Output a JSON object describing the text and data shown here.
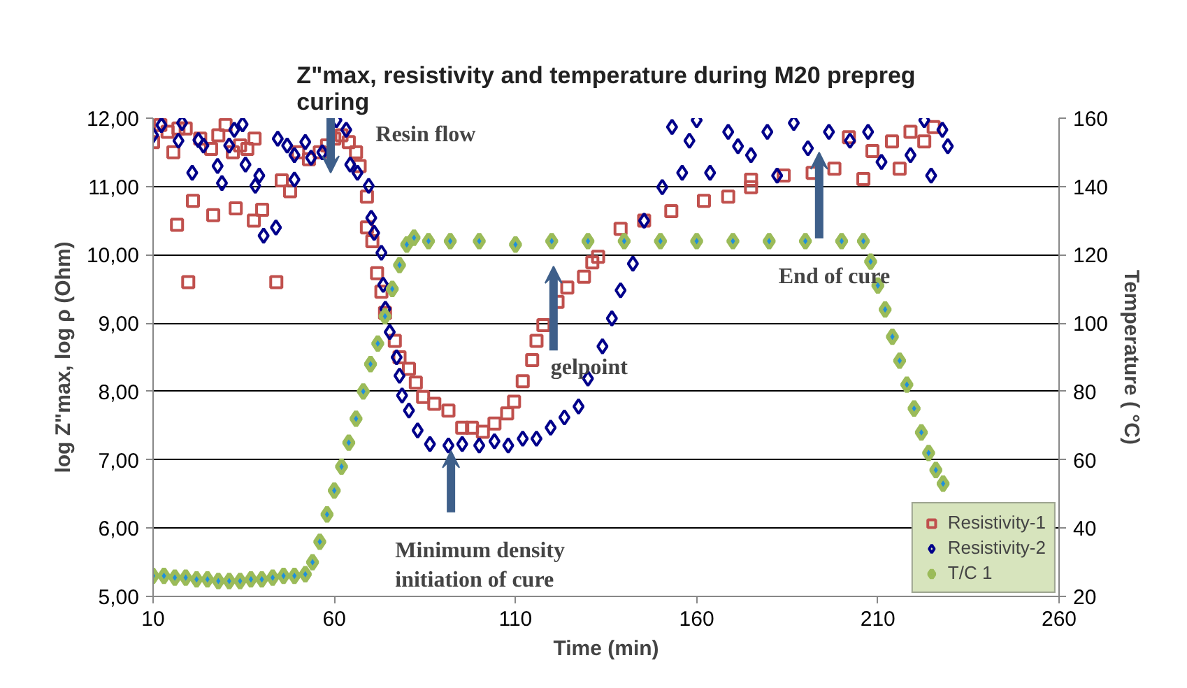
{
  "chart_data": {
    "type": "scatter",
    "title": "Z\"max, resistivity and temperature during M20 prepreg curing",
    "xlabel": "Time (min)",
    "ylabel": "log Z\"max, log ρ (Ohm)",
    "y2label": "Temperature ( °C)",
    "xlim": [
      10,
      260
    ],
    "xticks": [
      10,
      60,
      110,
      160,
      210,
      260
    ],
    "ylim": [
      5,
      12
    ],
    "yticks": [
      {
        "value": 5,
        "label": "5,00"
      },
      {
        "value": 6,
        "label": "6,00"
      },
      {
        "value": 7,
        "label": "7,00"
      },
      {
        "value": 8,
        "label": "8,00"
      },
      {
        "value": 9,
        "label": "9,00"
      },
      {
        "value": 10,
        "label": "10,00"
      },
      {
        "value": 11,
        "label": "11,00"
      },
      {
        "value": 12,
        "label": "12,00"
      }
    ],
    "y2lim": [
      20,
      160
    ],
    "y2ticks": [
      20,
      40,
      60,
      80,
      100,
      120,
      140,
      160
    ],
    "grid": "y",
    "legend": "bottom right",
    "series": [
      {
        "name": "Resistivity-1",
        "color": "#c0504d",
        "marker": "square",
        "x": [
          10,
          12,
          14,
          15.6,
          16.6,
          17,
          19,
          19.7,
          21,
          23,
          26,
          26.6,
          28,
          30,
          32,
          32.8,
          34,
          36,
          37.8,
          38,
          40.1,
          44,
          45.5,
          47.8,
          50,
          53,
          56,
          58,
          60,
          62,
          64,
          66,
          67,
          69,
          69,
          70.5,
          71.8,
          73,
          74,
          76.7,
          78,
          80.6,
          82.5,
          84.5,
          87.6,
          91.5,
          95.3,
          98,
          101,
          104.2,
          107.7,
          109.6,
          112,
          114.6,
          115.8,
          117.7,
          121.6,
          124.3,
          128.9,
          131.2,
          132.8,
          139,
          145.5,
          153,
          162,
          168.7,
          175,
          175,
          184,
          192,
          198,
          202,
          206,
          208.5,
          213.9,
          216,
          219,
          222.8,
          225.4
        ],
        "values": [
          11.65,
          11.9,
          11.8,
          11.5,
          10.44,
          11.85,
          11.85,
          9.6,
          10.79,
          11.7,
          11.55,
          10.58,
          11.75,
          11.9,
          11.5,
          10.68,
          11.6,
          11.55,
          10.5,
          11.7,
          10.66,
          9.6,
          11.09,
          10.93,
          11.5,
          11.4,
          11.5,
          11.6,
          11.7,
          11.75,
          11.65,
          11.5,
          11.3,
          10.85,
          10.4,
          10.2,
          9.73,
          9.46,
          9.15,
          8.74,
          8.5,
          8.33,
          8.13,
          7.92,
          7.82,
          7.72,
          7.47,
          7.47,
          7.41,
          7.53,
          7.68,
          7.85,
          8.15,
          8.46,
          8.74,
          8.97,
          9.31,
          9.52,
          9.68,
          9.89,
          9.97,
          10.38,
          10.5,
          10.64,
          10.79,
          10.85,
          10.99,
          11.1,
          11.16,
          11.2,
          11.26,
          11.72,
          11.11,
          11.52,
          11.66,
          11.26,
          11.8,
          11.66,
          11.87
        ]
      },
      {
        "name": "Resistivity-2",
        "color": "#00008b",
        "marker": "diamond",
        "x": [
          10,
          12.3,
          17,
          18,
          20.8,
          22.5,
          23.9,
          27.8,
          29,
          31,
          32.4,
          34.7,
          35.5,
          38.2,
          39.3,
          40.5,
          43.9,
          44.4,
          47,
          49,
          49,
          52,
          53.6,
          56.7,
          60.6,
          63.3,
          64.4,
          66.4,
          69.5,
          70.2,
          71,
          73,
          73.5,
          74.1,
          75.3,
          77.2,
          78,
          78.7,
          80.6,
          83,
          86.4,
          91.5,
          95.3,
          100,
          104.2,
          108,
          112,
          115.8,
          119.7,
          123.5,
          127.4,
          130,
          134,
          136.6,
          139,
          142.4,
          145.5,
          150.5,
          153.2,
          156,
          158,
          160,
          163.7,
          168.7,
          171.4,
          175,
          179.5,
          182.2,
          186.8,
          190.7,
          196.5,
          202.3,
          207.3,
          211,
          219,
          222.8,
          224.7,
          227.8,
          229.3
        ],
        "values": [
          11.75,
          11.9,
          11.67,
          11.93,
          11.2,
          11.68,
          11.6,
          11.3,
          11.05,
          11.6,
          11.83,
          11.91,
          11.32,
          11.01,
          11.16,
          10.28,
          10.4,
          11.7,
          11.6,
          11.46,
          11.1,
          11.65,
          11.42,
          11.5,
          11.97,
          11.83,
          11.32,
          11.2,
          11.01,
          10.54,
          10.32,
          10.03,
          9.56,
          9.21,
          8.87,
          8.5,
          8.23,
          7.94,
          7.72,
          7.43,
          7.23,
          7.21,
          7.23,
          7.21,
          7.27,
          7.21,
          7.31,
          7.31,
          7.47,
          7.62,
          7.78,
          8.19,
          8.66,
          9.07,
          9.48,
          9.87,
          10.5,
          10.99,
          11.87,
          11.2,
          11.67,
          11.97,
          11.2,
          11.8,
          11.59,
          11.46,
          11.8,
          11.16,
          11.93,
          11.56,
          11.8,
          11.67,
          11.8,
          11.36,
          11.46,
          11.97,
          11.16,
          11.83,
          11.59
        ]
      },
      {
        "name": "T/C 1",
        "color": "#9bbb59",
        "marker": "diamond",
        "axis": "y2",
        "x": [
          10,
          13,
          16,
          19,
          22,
          25,
          28,
          31,
          34,
          37,
          40,
          43,
          46,
          49,
          52,
          54,
          56,
          58,
          60,
          62,
          64,
          66,
          68,
          70,
          72,
          74,
          76,
          78,
          80,
          82,
          86,
          92,
          100,
          110,
          120,
          130,
          140,
          150,
          160,
          170,
          180,
          190,
          200,
          206,
          208,
          210,
          212,
          214,
          216,
          218,
          220,
          222,
          224,
          226,
          228
        ],
        "values": [
          26,
          26,
          25.5,
          25.5,
          25,
          25,
          24.5,
          24.5,
          24.5,
          25,
          25,
          25.5,
          26,
          26,
          26.5,
          30,
          36,
          44,
          51,
          58,
          65,
          72,
          80,
          88,
          94,
          102,
          110,
          117,
          123,
          125,
          124,
          124,
          124,
          123,
          124,
          124,
          124,
          124,
          124,
          124,
          124,
          124,
          124,
          124,
          118,
          111,
          104,
          96,
          89,
          82,
          75,
          68,
          62,
          57,
          53
        ]
      }
    ],
    "annotations": [
      "Resin flow",
      "gelpoint",
      {
        "text": "End of cure",
        "x": 193.8,
        "y": 11.5
      },
      {
        "text": "Minimum density initiation of cure",
        "x": 92.2,
        "y": 7.13
      }
    ]
  }
}
